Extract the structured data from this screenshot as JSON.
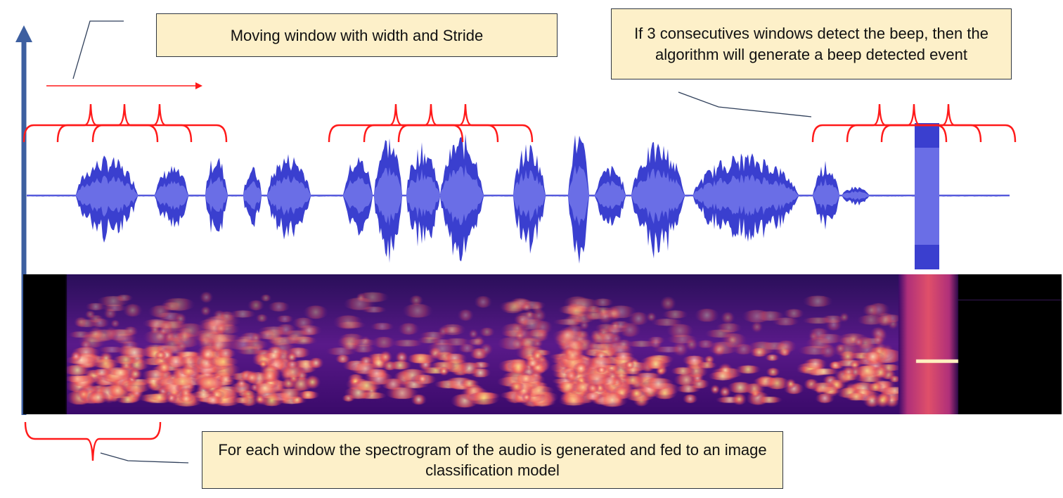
{
  "callouts": {
    "moving_window": "Moving window with width and Stride",
    "beep_detection": "If 3 consecutives windows detect the beep, then the algorithm will generate a beep detected event",
    "spectrogram": "For each window the spectrogram of the audio is generated and fed to an image classification model"
  },
  "colors": {
    "bracket": "#ff1a1a",
    "axis": "#3d5fa0",
    "waveform": "#3a3fcf",
    "waveform_inner": "#6a6ee6",
    "callout_fill": "#fdf0c9",
    "leader_line": "#2f3f5a"
  }
}
